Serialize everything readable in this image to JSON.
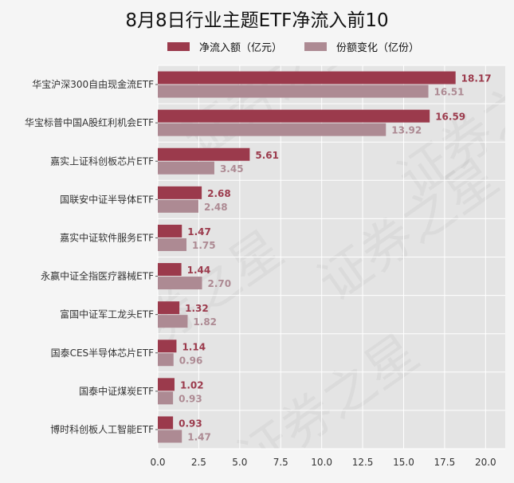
{
  "chart_data": {
    "type": "bar",
    "orientation": "horizontal",
    "title": "8月8日行业主题ETF净流入前10",
    "categories": [
      "华宝沪深300自由现金流ETF",
      "华宝标普中国A股红利机会ETF",
      "嘉实上证科创板芯片ETF",
      "国联安中证半导体ETF",
      "嘉实中证软件服务ETF",
      "永赢中证全指医疗器械ETF",
      "富国中证军工龙头ETF",
      "国泰CES半导体芯片ETF",
      "国泰中证煤炭ETF",
      "博时科创板人工智能ETF"
    ],
    "series": [
      {
        "name": "净流入额（亿元）",
        "color": "#9b3a4c",
        "values": [
          18.17,
          16.59,
          5.61,
          2.68,
          1.47,
          1.44,
          1.32,
          1.14,
          1.02,
          0.93
        ],
        "labels": [
          "18.17",
          "16.59",
          "5.61",
          "2.68",
          "1.47",
          "1.44",
          "1.32",
          "1.14",
          "1.02",
          "0.93"
        ]
      },
      {
        "name": "份额变化（亿份）",
        "color": "#ad8a93",
        "values": [
          16.51,
          13.92,
          3.45,
          2.48,
          1.75,
          2.7,
          1.82,
          0.96,
          0.93,
          1.47
        ],
        "labels": [
          "16.51",
          "13.92",
          "3.45",
          "2.48",
          "1.75",
          "2.70",
          "1.82",
          "0.96",
          "0.93",
          "1.47"
        ]
      }
    ],
    "xlim": [
      0,
      21.2
    ],
    "xticks": [
      0,
      2.5,
      5,
      7.5,
      10,
      12.5,
      15,
      17.5,
      20
    ],
    "xtick_labels": [
      "0.0",
      "2.5",
      "5.0",
      "7.5",
      "10.0",
      "12.5",
      "15.0",
      "17.5",
      "20.0"
    ],
    "xlabel": "",
    "ylabel": "",
    "grid": true,
    "legend_position": "top",
    "plot_background": "#e4e4e4",
    "watermark": "证券之星"
  }
}
